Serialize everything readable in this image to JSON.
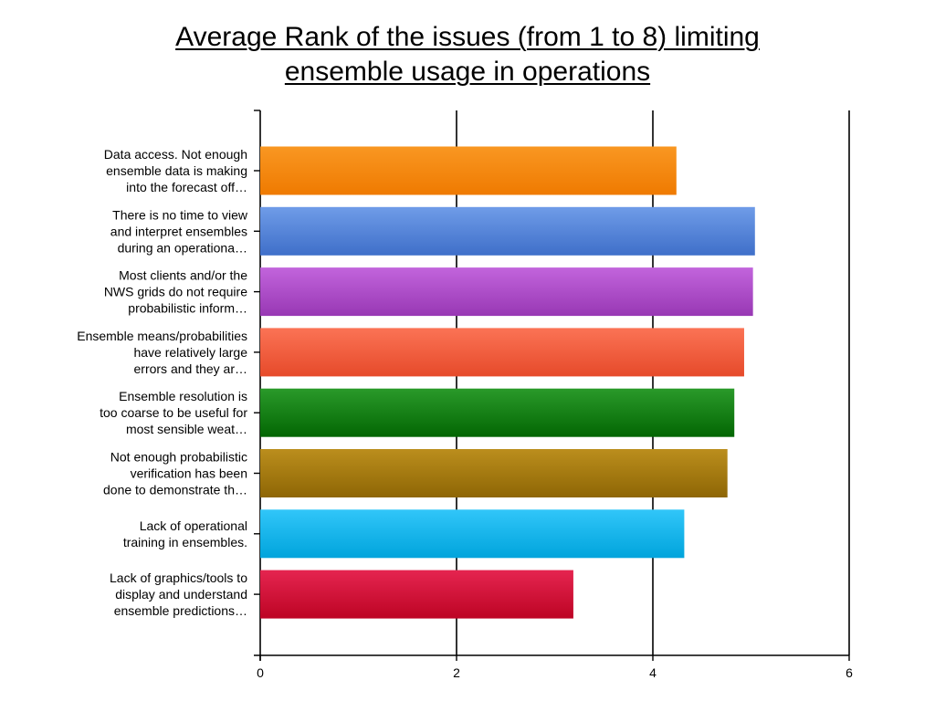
{
  "chart_data": {
    "type": "bar",
    "orientation": "horizontal",
    "title_lines": [
      "Average Rank of the issues (from 1 to 8) limiting",
      "ensemble usage in operations"
    ],
    "xlabel": "",
    "ylabel": "",
    "xlim": [
      0,
      6
    ],
    "x_ticks": [
      "0",
      "2",
      "4",
      "6"
    ],
    "grid": "vertical gridlines at each labeled tick",
    "legend": "none",
    "categories": [
      [
        "Data access. Not enough",
        "ensemble data is making",
        "into the forecast off…"
      ],
      [
        "There is no time to view",
        "and interpret ensembles",
        "during an operationa…"
      ],
      [
        "Most clients and/or the",
        "NWS grids do not require",
        "probabilistic inform…"
      ],
      [
        "Ensemble means/probabilities",
        "have relatively large",
        "errors and they ar…"
      ],
      [
        "Ensemble resolution is",
        "too coarse to be useful for",
        "most sensible weat…"
      ],
      [
        "Not enough probabilistic",
        "verification has been",
        "done to demonstrate th…"
      ],
      [
        "Lack of operational",
        "training in ensembles."
      ],
      [
        "Lack of graphics/tools to",
        "display and understand",
        "ensemble predictions…"
      ]
    ],
    "values": [
      4.24,
      5.04,
      5.02,
      4.93,
      4.83,
      4.76,
      4.32,
      3.19
    ],
    "colors": [
      [
        "#f99722",
        "#ef7a00"
      ],
      [
        "#6f9ce8",
        "#3f6fc9"
      ],
      [
        "#c264dc",
        "#9838b4"
      ],
      [
        "#fb7355",
        "#e64a2a"
      ],
      [
        "#2a9a2a",
        "#036603"
      ],
      [
        "#bb8e1d",
        "#8e6605"
      ],
      [
        "#31c6f9",
        "#00a4dc"
      ],
      [
        "#e52550",
        "#bd0424"
      ]
    ]
  }
}
